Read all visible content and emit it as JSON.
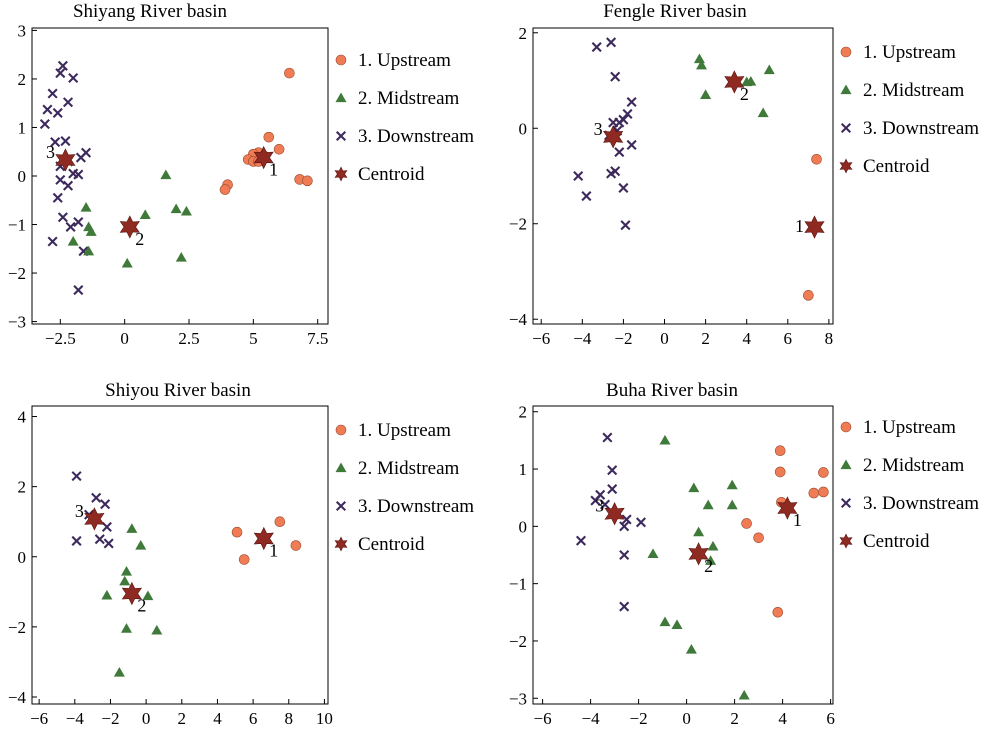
{
  "colors": {
    "upstream": "#f07c55",
    "midstream": "#3f7a3a",
    "downstream": "#3d2a5c",
    "centroid": "#8e2a22"
  },
  "chart_data": [
    {
      "type": "scatter",
      "title": "Shiyang River basin",
      "xlim": [
        -3.6,
        7.9
      ],
      "ylim": [
        -3.05,
        3.05
      ],
      "xticks": [
        -2.5,
        0,
        2.5,
        5,
        7.5
      ],
      "xtick_labels": [
        "−2.5",
        "0",
        "2.5",
        "5",
        "7.5"
      ],
      "yticks": [
        -3,
        -2,
        -1,
        0,
        1,
        2,
        3
      ],
      "ytick_labels": [
        "−3",
        "−2",
        "−1",
        "0",
        "1",
        "2",
        "3"
      ],
      "legend": [
        "1. Upstream",
        "2. Midstream",
        "3. Downstream",
        "Centroid"
      ],
      "legend_position": "right",
      "series": [
        {
          "name": "1. Upstream",
          "marker": "circle",
          "points": [
            [
              6.4,
              2.12
            ],
            [
              5.6,
              0.8
            ],
            [
              6.0,
              0.55
            ],
            [
              5.2,
              0.48
            ],
            [
              5.0,
              0.45
            ],
            [
              4.8,
              0.34
            ],
            [
              5.0,
              0.3
            ],
            [
              5.2,
              0.3
            ],
            [
              4.0,
              -0.18
            ],
            [
              3.9,
              -0.28
            ],
            [
              6.8,
              -0.07
            ],
            [
              7.1,
              -0.1
            ],
            [
              5.4,
              0.42
            ]
          ]
        },
        {
          "name": "2. Midstream",
          "marker": "triangle",
          "points": [
            [
              1.6,
              0.02
            ],
            [
              2.0,
              -0.68
            ],
            [
              2.4,
              -0.73
            ],
            [
              0.8,
              -0.8
            ],
            [
              -1.5,
              -0.65
            ],
            [
              -1.4,
              -1.05
            ],
            [
              -1.3,
              -1.15
            ],
            [
              -1.4,
              -1.55
            ],
            [
              -2.0,
              -1.35
            ],
            [
              0.1,
              -1.8
            ],
            [
              2.2,
              -1.68
            ]
          ]
        },
        {
          "name": "3. Downstream",
          "marker": "x",
          "points": [
            [
              -2.4,
              2.27
            ],
            [
              -2.5,
              2.12
            ],
            [
              -2.0,
              2.02
            ],
            [
              -2.8,
              1.7
            ],
            [
              -3.0,
              1.37
            ],
            [
              -2.2,
              1.52
            ],
            [
              -2.6,
              1.3
            ],
            [
              -3.1,
              1.07
            ],
            [
              -2.7,
              0.7
            ],
            [
              -2.3,
              0.72
            ],
            [
              -1.7,
              0.38
            ],
            [
              -1.5,
              0.48
            ],
            [
              -2.2,
              0.3
            ],
            [
              -2.0,
              0.05
            ],
            [
              -1.8,
              0.03
            ],
            [
              -2.5,
              -0.08
            ],
            [
              -2.6,
              -0.45
            ],
            [
              -2.2,
              -0.2
            ],
            [
              -2.4,
              -0.85
            ],
            [
              -2.1,
              -1.05
            ],
            [
              -1.8,
              -0.95
            ],
            [
              -2.8,
              -1.35
            ],
            [
              -1.6,
              -1.55
            ],
            [
              -1.8,
              -2.35
            ],
            [
              -2.5,
              0.2
            ]
          ]
        },
        {
          "name": "Centroid",
          "marker": "star",
          "points": [
            [
              5.4,
              0.38
            ],
            [
              0.2,
              -1.05
            ],
            [
              -2.3,
              0.33
            ]
          ],
          "labels": [
            "1",
            "2",
            "3"
          ]
        }
      ]
    },
    {
      "type": "scatter",
      "title": "Fengle River basin",
      "xlim": [
        -6.4,
        8.2
      ],
      "ylim": [
        -4.1,
        2.1
      ],
      "xticks": [
        -6,
        -4,
        -2,
        0,
        2,
        4,
        6,
        8
      ],
      "xtick_labels": [
        "−6",
        "−4",
        "−2",
        "0",
        "2",
        "4",
        "6",
        "8"
      ],
      "yticks": [
        -4,
        -2,
        0,
        2
      ],
      "ytick_labels": [
        "−4",
        "−2",
        "0",
        "2"
      ],
      "legend": [
        "1. Upstream",
        "2. Midstream",
        "3. Downstream",
        "Centroid"
      ],
      "legend_position": "right",
      "series": [
        {
          "name": "1. Upstream",
          "marker": "circle",
          "points": [
            [
              7.4,
              -0.65
            ],
            [
              7.0,
              -3.5
            ]
          ]
        },
        {
          "name": "2. Midstream",
          "marker": "triangle",
          "points": [
            [
              1.7,
              1.45
            ],
            [
              1.8,
              1.32
            ],
            [
              5.1,
              1.22
            ],
            [
              4.0,
              0.97
            ],
            [
              4.2,
              0.98
            ],
            [
              2.0,
              0.7
            ],
            [
              4.8,
              0.32
            ],
            [
              3.5,
              0.95
            ]
          ]
        },
        {
          "name": "3. Downstream",
          "marker": "x",
          "points": [
            [
              -3.3,
              1.7
            ],
            [
              -2.6,
              1.8
            ],
            [
              -2.4,
              1.08
            ],
            [
              -1.6,
              0.55
            ],
            [
              -1.8,
              0.3
            ],
            [
              -2.0,
              0.18
            ],
            [
              -2.2,
              0.12
            ],
            [
              -2.5,
              0.12
            ],
            [
              -2.3,
              -0.05
            ],
            [
              -2.2,
              -0.5
            ],
            [
              -1.6,
              -0.35
            ],
            [
              -2.4,
              -0.9
            ],
            [
              -2.6,
              -0.95
            ],
            [
              -4.2,
              -1.0
            ],
            [
              -3.8,
              -1.42
            ],
            [
              -2.0,
              -1.25
            ],
            [
              -1.9,
              -2.03
            ],
            [
              -2.7,
              -0.15
            ]
          ]
        },
        {
          "name": "Centroid",
          "marker": "star",
          "points": [
            [
              7.3,
              -2.07
            ],
            [
              3.4,
              0.97
            ],
            [
              -2.5,
              -0.18
            ]
          ],
          "labels": [
            "1",
            "2",
            "3"
          ]
        }
      ]
    },
    {
      "type": "scatter",
      "title": "Shiyou River basin",
      "xlim": [
        -6.4,
        10.2
      ],
      "ylim": [
        -4.2,
        4.3
      ],
      "xticks": [
        -6,
        -4,
        -2,
        0,
        2,
        4,
        6,
        8,
        10
      ],
      "xtick_labels": [
        "−6",
        "−4",
        "−2",
        "0",
        "2",
        "4",
        "6",
        "8",
        "10"
      ],
      "yticks": [
        -4,
        -2,
        0,
        2,
        4
      ],
      "ytick_labels": [
        "−4",
        "−2",
        "0",
        "2",
        "4"
      ],
      "legend": [
        "1. Upstream",
        "2. Midstream",
        "3. Downstream",
        "Centroid"
      ],
      "legend_position": "right",
      "series": [
        {
          "name": "1. Upstream",
          "marker": "circle",
          "points": [
            [
              7.5,
              1.0
            ],
            [
              5.1,
              0.7
            ],
            [
              8.4,
              0.32
            ],
            [
              5.5,
              -0.08
            ],
            [
              6.6,
              0.5
            ]
          ]
        },
        {
          "name": "2. Midstream",
          "marker": "triangle",
          "points": [
            [
              -0.8,
              0.8
            ],
            [
              -0.3,
              0.32
            ],
            [
              -1.1,
              -0.42
            ],
            [
              -1.2,
              -0.7
            ],
            [
              -2.2,
              -1.1
            ],
            [
              0.1,
              -1.12
            ],
            [
              -1.1,
              -2.05
            ],
            [
              0.6,
              -2.1
            ],
            [
              -1.5,
              -3.3
            ],
            [
              -0.8,
              -1.05
            ]
          ]
        },
        {
          "name": "3. Downstream",
          "marker": "x",
          "points": [
            [
              -3.9,
              2.3
            ],
            [
              -2.8,
              1.68
            ],
            [
              -2.3,
              1.5
            ],
            [
              -3.2,
              1.2
            ],
            [
              -2.2,
              0.85
            ],
            [
              -3.9,
              0.45
            ],
            [
              -2.6,
              0.5
            ],
            [
              -2.1,
              0.38
            ],
            [
              -2.9,
              1.1
            ]
          ]
        },
        {
          "name": "Centroid",
          "marker": "star",
          "points": [
            [
              6.6,
              0.52
            ],
            [
              -0.8,
              -1.05
            ],
            [
              -2.9,
              1.08
            ]
          ],
          "labels": [
            "1",
            "2",
            "3"
          ]
        }
      ]
    },
    {
      "type": "scatter",
      "title": "Buha River basin",
      "xlim": [
        -6.4,
        6.1
      ],
      "ylim": [
        -3.1,
        2.1
      ],
      "xticks": [
        -6,
        -4,
        -2,
        0,
        2,
        4,
        6
      ],
      "xtick_labels": [
        "−6",
        "−4",
        "−2",
        "0",
        "2",
        "4",
        "6"
      ],
      "yticks": [
        -3,
        -2,
        -1,
        0,
        1,
        2
      ],
      "ytick_labels": [
        "−3",
        "−2",
        "−1",
        "0",
        "1",
        "2"
      ],
      "legend": [
        "1. Upstream",
        "2. Midstream",
        "3. Downstream",
        "Centroid"
      ],
      "legend_position": "right",
      "series": [
        {
          "name": "1. Upstream",
          "marker": "circle",
          "points": [
            [
              3.9,
              1.32
            ],
            [
              3.9,
              0.95
            ],
            [
              5.7,
              0.94
            ],
            [
              5.3,
              0.58
            ],
            [
              5.7,
              0.6
            ],
            [
              3.95,
              0.42
            ],
            [
              2.5,
              0.05
            ],
            [
              3.0,
              -0.2
            ],
            [
              3.8,
              -1.5
            ],
            [
              4.2,
              0.35
            ]
          ]
        },
        {
          "name": "2. Midstream",
          "marker": "triangle",
          "points": [
            [
              -0.9,
              1.5
            ],
            [
              1.9,
              0.72
            ],
            [
              0.3,
              0.67
            ],
            [
              1.9,
              0.37
            ],
            [
              0.9,
              0.37
            ],
            [
              0.5,
              -0.1
            ],
            [
              1.1,
              -0.35
            ],
            [
              -1.4,
              -0.48
            ],
            [
              1.0,
              -0.6
            ],
            [
              -0.9,
              -1.67
            ],
            [
              -0.4,
              -1.72
            ],
            [
              0.2,
              -2.15
            ],
            [
              2.4,
              -2.95
            ]
          ]
        },
        {
          "name": "3. Downstream",
          "marker": "x",
          "points": [
            [
              -3.3,
              1.55
            ],
            [
              -3.1,
              0.98
            ],
            [
              -3.6,
              0.55
            ],
            [
              -3.1,
              0.65
            ],
            [
              -3.8,
              0.45
            ],
            [
              -3.4,
              0.38
            ],
            [
              -2.5,
              0.12
            ],
            [
              -1.9,
              0.07
            ],
            [
              -2.6,
              0.0
            ],
            [
              -4.4,
              -0.25
            ],
            [
              -2.6,
              -0.5
            ],
            [
              -2.6,
              -1.4
            ]
          ]
        },
        {
          "name": "Centroid",
          "marker": "star",
          "points": [
            [
              4.2,
              0.32
            ],
            [
              0.5,
              -0.48
            ],
            [
              -3.0,
              0.22
            ]
          ],
          "labels": [
            "1",
            "2",
            "3"
          ]
        }
      ]
    }
  ]
}
